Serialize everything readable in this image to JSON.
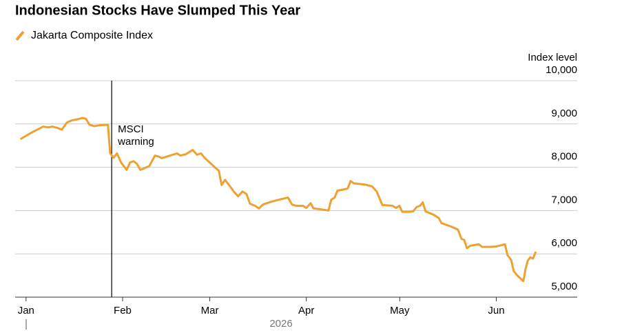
{
  "chart_data": {
    "type": "line",
    "title": "Indonesian Stocks Have Slumped This Year",
    "y_label": "Index level",
    "x_label": "2026",
    "annotation": {
      "text": "MSCI warning",
      "x": 27.5
    },
    "xlim": [
      -3.5,
      177
    ],
    "ylim": [
      5000,
      10000
    ],
    "xticks": [
      {
        "value": 0,
        "label": "Jan"
      },
      {
        "value": 31,
        "label": "Feb"
      },
      {
        "value": 59,
        "label": "Mar"
      },
      {
        "value": 90,
        "label": "Apr"
      },
      {
        "value": 120,
        "label": "May"
      },
      {
        "value": 151,
        "label": "Jun"
      }
    ],
    "yticks": [
      {
        "value": 5000,
        "label": "5,000"
      },
      {
        "value": 6000,
        "label": "6,000"
      },
      {
        "value": 7000,
        "label": "7,000"
      },
      {
        "value": 8000,
        "label": "8,000"
      },
      {
        "value": 9000,
        "label": "9,000"
      },
      {
        "value": 10000,
        "label": "10,000"
      }
    ],
    "grid": true,
    "legend": "top-left",
    "x": [
      -1.8,
      1.5,
      4.2,
      5.5,
      7.1,
      8.4,
      10.0,
      11.5,
      13.1,
      14.6,
      16.6,
      18.1,
      19.2,
      20.4,
      21.9,
      23.7,
      26.3,
      27.0,
      28.1,
      29.2,
      30.5,
      32.3,
      33.4,
      34.5,
      35.6,
      36.7,
      38.1,
      39.6,
      41.4,
      42.5,
      43.6,
      46.2,
      48.5,
      49.6,
      51.3,
      53.5,
      54.9,
      56.2,
      57.3,
      59.1,
      60.6,
      61.9,
      62.8,
      63.9,
      65.5,
      66.8,
      68.1,
      69.5,
      70.8,
      71.9,
      73.5,
      74.8,
      76.1,
      79.0,
      82.3,
      84.1,
      85.4,
      86.7,
      88.9,
      90.0,
      91.4,
      92.3,
      94.5,
      97.1,
      98.0,
      99.1,
      100.0,
      102.2,
      103.3,
      104.2,
      105.3,
      106.6,
      108.8,
      111.1,
      112.6,
      114.4,
      117.7,
      118.8,
      119.9,
      120.8,
      123.2,
      124.3,
      125.4,
      126.5,
      127.4,
      128.3,
      131.0,
      132.5,
      133.4,
      136.5,
      138.7,
      139.8,
      140.7,
      141.6,
      142.7,
      145.4,
      146.5,
      149.3,
      150.9,
      153.8,
      154.6,
      155.8,
      156.6,
      157.9,
      159.7,
      160.4,
      161.1,
      161.9,
      162.8,
      163.7
    ],
    "series": [
      {
        "name": "Jakarta Composite Index",
        "color": "#f0a030",
        "values": [
          8650,
          8790,
          8890,
          8940,
          8920,
          8940,
          8910,
          8870,
          9030,
          9080,
          9110,
          9140,
          9120,
          8980,
          8950,
          8970,
          8980,
          8320,
          8220,
          8320,
          8110,
          7940,
          8110,
          8140,
          8080,
          7940,
          7980,
          8030,
          8270,
          8250,
          8210,
          8270,
          8320,
          8270,
          8300,
          8400,
          8290,
          8320,
          8220,
          8100,
          8000,
          7920,
          7590,
          7710,
          7560,
          7430,
          7330,
          7440,
          7380,
          7160,
          7110,
          7050,
          7140,
          7210,
          7270,
          7300,
          7140,
          7110,
          7110,
          7060,
          7170,
          7050,
          7030,
          7000,
          7250,
          7300,
          7460,
          7490,
          7510,
          7680,
          7630,
          7620,
          7600,
          7560,
          7440,
          7130,
          7110,
          7060,
          7110,
          6970,
          6970,
          6980,
          7080,
          7110,
          7190,
          6980,
          6900,
          6830,
          6710,
          6630,
          6560,
          6350,
          6320,
          6130,
          6190,
          6220,
          6160,
          6160,
          6170,
          6220,
          5970,
          5860,
          5600,
          5490,
          5370,
          5650,
          5840,
          5920,
          5890,
          6050
        ]
      }
    ]
  }
}
